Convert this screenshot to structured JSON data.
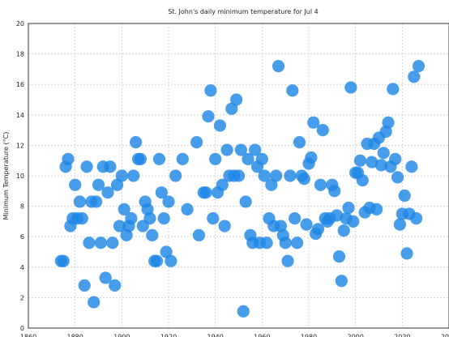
{
  "chart_data": {
    "type": "scatter",
    "title": "St. John's daily minimum temperature for Jul 4",
    "xlabel": "",
    "ylabel": "Minimum Temperature (°C)",
    "xlim": [
      1860,
      2040
    ],
    "ylim": [
      0,
      20
    ],
    "xticks": [
      1860,
      1880,
      1900,
      1920,
      1940,
      1960,
      1980,
      2000,
      2020,
      2040
    ],
    "yticks": [
      0,
      2,
      4,
      6,
      8,
      10,
      12,
      14,
      16,
      18,
      20
    ],
    "grid": true,
    "marker_color": "#1e88e5",
    "points": [
      {
        "x": 1874,
        "y": 4.4
      },
      {
        "x": 1875,
        "y": 4.4
      },
      {
        "x": 1876,
        "y": 10.6
      },
      {
        "x": 1877,
        "y": 11.1
      },
      {
        "x": 1878,
        "y": 6.7
      },
      {
        "x": 1879,
        "y": 7.2
      },
      {
        "x": 1880,
        "y": 9.4
      },
      {
        "x": 1881,
        "y": 7.2
      },
      {
        "x": 1882,
        "y": 8.3
      },
      {
        "x": 1883,
        "y": 7.2
      },
      {
        "x": 1884,
        "y": 2.8
      },
      {
        "x": 1885,
        "y": 10.6
      },
      {
        "x": 1886,
        "y": 5.6
      },
      {
        "x": 1887,
        "y": 8.3
      },
      {
        "x": 1888,
        "y": 1.7
      },
      {
        "x": 1889,
        "y": 8.3
      },
      {
        "x": 1890,
        "y": 9.4
      },
      {
        "x": 1891,
        "y": 5.6
      },
      {
        "x": 1892,
        "y": 10.6
      },
      {
        "x": 1893,
        "y": 3.3
      },
      {
        "x": 1894,
        "y": 8.9
      },
      {
        "x": 1895,
        "y": 10.6
      },
      {
        "x": 1896,
        "y": 5.6
      },
      {
        "x": 1897,
        "y": 2.8
      },
      {
        "x": 1898,
        "y": 9.4
      },
      {
        "x": 1899,
        "y": 6.7
      },
      {
        "x": 1900,
        "y": 10.0
      },
      {
        "x": 1901,
        "y": 7.8
      },
      {
        "x": 1902,
        "y": 6.1
      },
      {
        "x": 1903,
        "y": 6.7
      },
      {
        "x": 1904,
        "y": 7.2
      },
      {
        "x": 1905,
        "y": 10.0
      },
      {
        "x": 1906,
        "y": 12.2
      },
      {
        "x": 1907,
        "y": 11.1
      },
      {
        "x": 1908,
        "y": 11.1
      },
      {
        "x": 1909,
        "y": 6.7
      },
      {
        "x": 1910,
        "y": 8.3
      },
      {
        "x": 1911,
        "y": 7.8
      },
      {
        "x": 1912,
        "y": 7.2
      },
      {
        "x": 1913,
        "y": 6.1
      },
      {
        "x": 1914,
        "y": 4.4
      },
      {
        "x": 1915,
        "y": 4.4
      },
      {
        "x": 1916,
        "y": 11.1
      },
      {
        "x": 1917,
        "y": 8.9
      },
      {
        "x": 1918,
        "y": 7.2
      },
      {
        "x": 1919,
        "y": 5.0
      },
      {
        "x": 1920,
        "y": 8.3
      },
      {
        "x": 1921,
        "y": 4.4
      },
      {
        "x": 1923,
        "y": 10.0
      },
      {
        "x": 1926,
        "y": 11.1
      },
      {
        "x": 1928,
        "y": 7.8
      },
      {
        "x": 1932,
        "y": 12.2
      },
      {
        "x": 1933,
        "y": 6.1
      },
      {
        "x": 1935,
        "y": 8.9
      },
      {
        "x": 1936,
        "y": 8.9
      },
      {
        "x": 1937,
        "y": 13.9
      },
      {
        "x": 1938,
        "y": 15.6
      },
      {
        "x": 1939,
        "y": 7.2
      },
      {
        "x": 1940,
        "y": 11.1
      },
      {
        "x": 1941,
        "y": 8.9
      },
      {
        "x": 1942,
        "y": 13.3
      },
      {
        "x": 1943,
        "y": 9.4
      },
      {
        "x": 1944,
        "y": 6.7
      },
      {
        "x": 1945,
        "y": 11.7
      },
      {
        "x": 1946,
        "y": 10.0
      },
      {
        "x": 1947,
        "y": 14.4
      },
      {
        "x": 1948,
        "y": 10.0
      },
      {
        "x": 1949,
        "y": 15.0
      },
      {
        "x": 1950,
        "y": 10.0
      },
      {
        "x": 1951,
        "y": 11.7
      },
      {
        "x": 1952,
        "y": 1.1
      },
      {
        "x": 1953,
        "y": 8.3
      },
      {
        "x": 1954,
        "y": 11.1
      },
      {
        "x": 1955,
        "y": 6.1
      },
      {
        "x": 1956,
        "y": 5.6
      },
      {
        "x": 1957,
        "y": 11.7
      },
      {
        "x": 1958,
        "y": 10.6
      },
      {
        "x": 1959,
        "y": 5.6
      },
      {
        "x": 1960,
        "y": 11.1
      },
      {
        "x": 1961,
        "y": 10.0
      },
      {
        "x": 1962,
        "y": 5.6
      },
      {
        "x": 1963,
        "y": 7.2
      },
      {
        "x": 1964,
        "y": 9.4
      },
      {
        "x": 1965,
        "y": 6.7
      },
      {
        "x": 1966,
        "y": 10.0
      },
      {
        "x": 1967,
        "y": 17.2
      },
      {
        "x": 1968,
        "y": 6.7
      },
      {
        "x": 1969,
        "y": 6.1
      },
      {
        "x": 1970,
        "y": 5.6
      },
      {
        "x": 1971,
        "y": 4.4
      },
      {
        "x": 1972,
        "y": 10.0
      },
      {
        "x": 1973,
        "y": 15.6
      },
      {
        "x": 1974,
        "y": 7.2
      },
      {
        "x": 1975,
        "y": 5.6
      },
      {
        "x": 1976,
        "y": 12.2
      },
      {
        "x": 1977,
        "y": 10.0
      },
      {
        "x": 1978,
        "y": 9.8
      },
      {
        "x": 1979,
        "y": 6.8
      },
      {
        "x": 1980,
        "y": 10.8
      },
      {
        "x": 1981,
        "y": 11.2
      },
      {
        "x": 1982,
        "y": 13.5
      },
      {
        "x": 1983,
        "y": 6.2
      },
      {
        "x": 1984,
        "y": 6.5
      },
      {
        "x": 1985,
        "y": 9.4
      },
      {
        "x": 1986,
        "y": 13.0
      },
      {
        "x": 1987,
        "y": 7.2
      },
      {
        "x": 1988,
        "y": 7.0
      },
      {
        "x": 1989,
        "y": 7.2
      },
      {
        "x": 1990,
        "y": 9.4
      },
      {
        "x": 1991,
        "y": 9.0
      },
      {
        "x": 1992,
        "y": 7.4
      },
      {
        "x": 1993,
        "y": 4.7
      },
      {
        "x": 1994,
        "y": 3.1
      },
      {
        "x": 1995,
        "y": 6.4
      },
      {
        "x": 1996,
        "y": 7.2
      },
      {
        "x": 1997,
        "y": 7.9
      },
      {
        "x": 1998,
        "y": 15.8
      },
      {
        "x": 1999,
        "y": 7.0
      },
      {
        "x": 2000,
        "y": 10.2
      },
      {
        "x": 2001,
        "y": 10.2
      },
      {
        "x": 2002,
        "y": 11.0
      },
      {
        "x": 2003,
        "y": 9.7
      },
      {
        "x": 2004,
        "y": 7.6
      },
      {
        "x": 2005,
        "y": 12.1
      },
      {
        "x": 2006,
        "y": 7.9
      },
      {
        "x": 2007,
        "y": 10.9
      },
      {
        "x": 2008,
        "y": 12.1
      },
      {
        "x": 2009,
        "y": 7.8
      },
      {
        "x": 2010,
        "y": 12.5
      },
      {
        "x": 2011,
        "y": 10.7
      },
      {
        "x": 2012,
        "y": 11.5
      },
      {
        "x": 2013,
        "y": 12.9
      },
      {
        "x": 2014,
        "y": 13.5
      },
      {
        "x": 2015,
        "y": 10.6
      },
      {
        "x": 2016,
        "y": 15.7
      },
      {
        "x": 2017,
        "y": 11.1
      },
      {
        "x": 2018,
        "y": 9.9
      },
      {
        "x": 2019,
        "y": 6.8
      },
      {
        "x": 2020,
        "y": 7.5
      },
      {
        "x": 2021,
        "y": 8.7
      },
      {
        "x": 2022,
        "y": 4.9
      },
      {
        "x": 2023,
        "y": 7.5
      },
      {
        "x": 2024,
        "y": 10.6
      },
      {
        "x": 2025,
        "y": 16.5
      },
      {
        "x": 2026,
        "y": 7.2
      },
      {
        "x": 2027,
        "y": 17.2
      }
    ]
  }
}
